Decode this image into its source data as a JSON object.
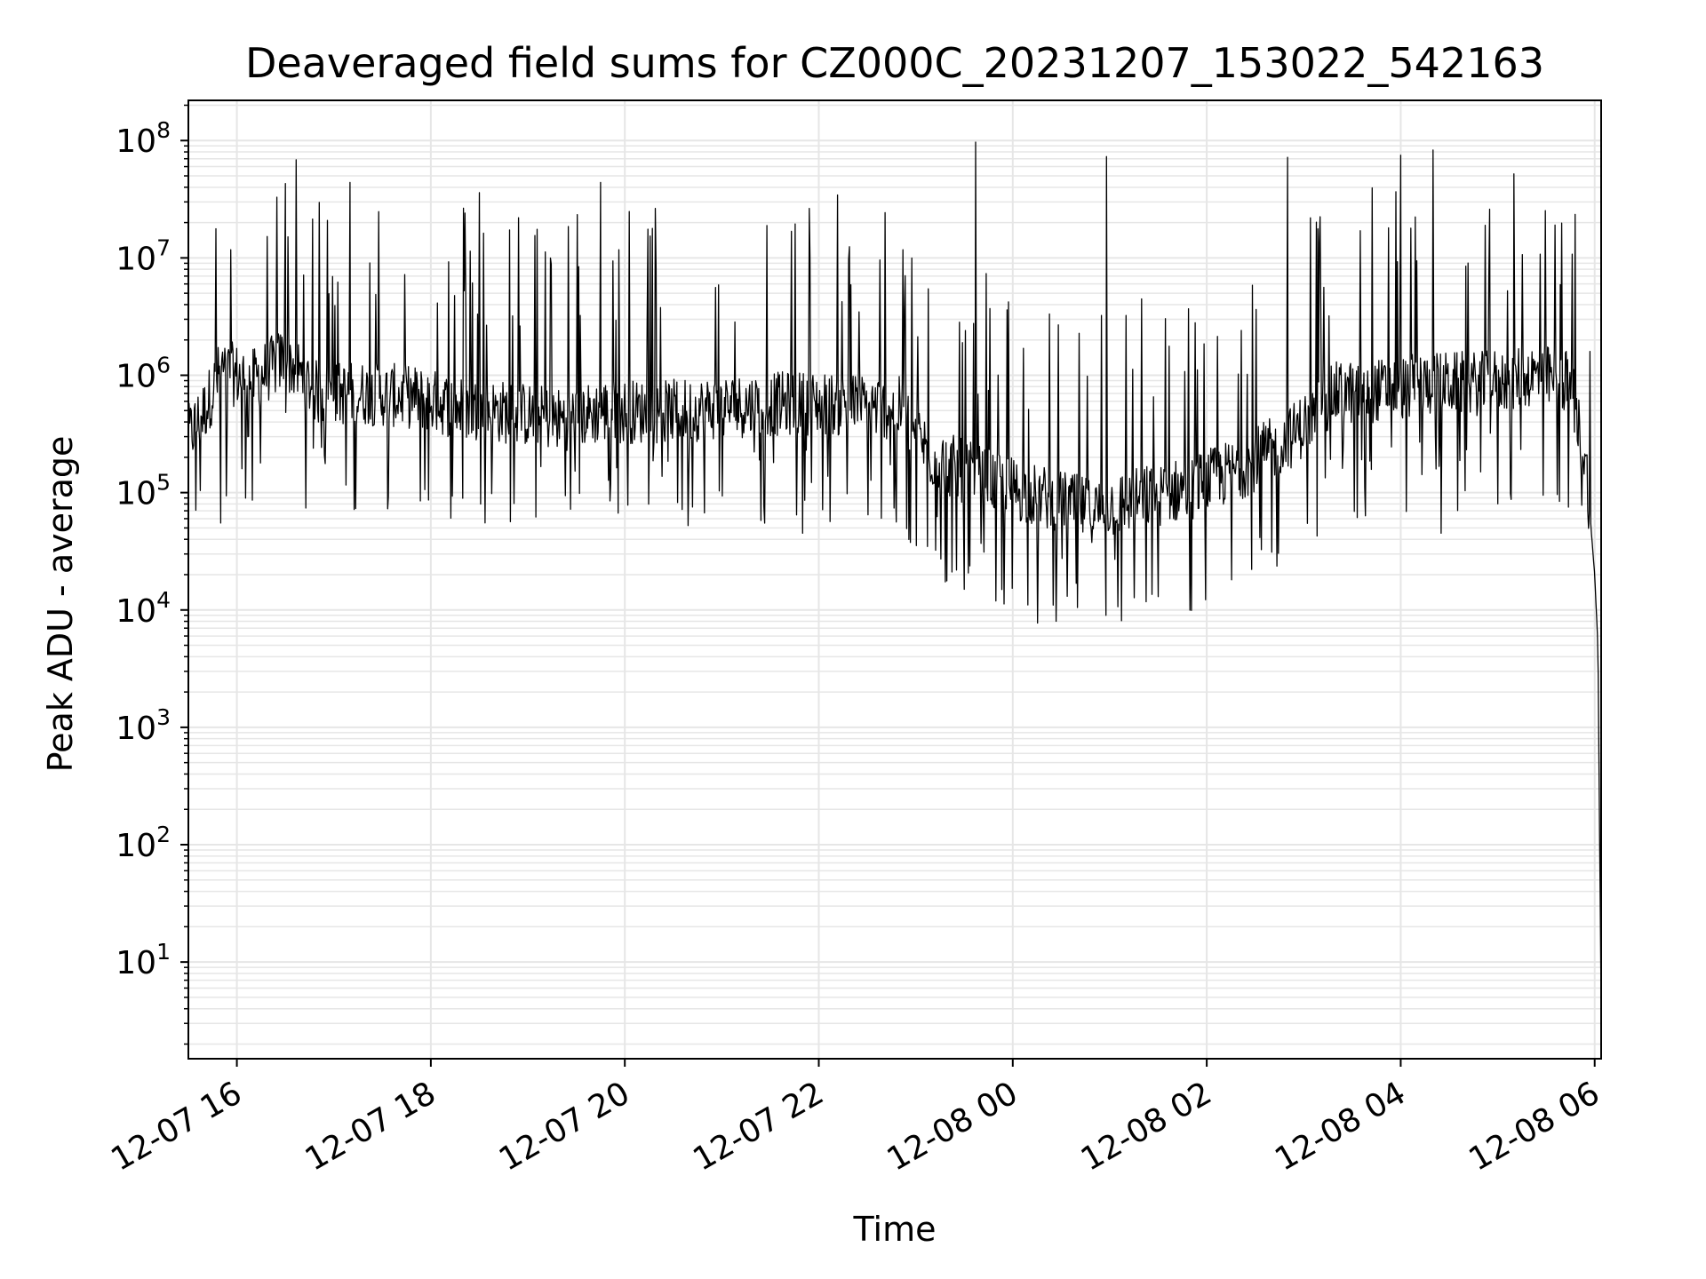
{
  "chart_data": {
    "type": "line",
    "title": "Deaveraged field sums for CZ000C_20231207_153022_542163",
    "xlabel": "Time",
    "ylabel": "Peak ADU - average",
    "x_axis": {
      "type": "datetime",
      "range": [
        "2023-12-07 15:30",
        "2023-12-08 06:04"
      ],
      "tick_values": [
        "2023-12-07 16:00",
        "2023-12-07 18:00",
        "2023-12-07 20:00",
        "2023-12-07 22:00",
        "2023-12-08 00:00",
        "2023-12-08 02:00",
        "2023-12-08 04:00",
        "2023-12-08 06:00"
      ],
      "tick_labels": [
        "12-07 16",
        "12-07 18",
        "12-07 20",
        "12-07 22",
        "12-08 00",
        "12-08 02",
        "12-08 04",
        "12-08 06"
      ]
    },
    "y_axis": {
      "scale": "log",
      "range": [
        1.5,
        220000000
      ],
      "tick_values": [
        10,
        100,
        1000,
        10000,
        100000,
        1000000,
        10000000,
        100000000
      ],
      "tick_labels": [
        {
          "base": "10",
          "exp": "1"
        },
        {
          "base": "10",
          "exp": "2"
        },
        {
          "base": "10",
          "exp": "3"
        },
        {
          "base": "10",
          "exp": "4"
        },
        {
          "base": "10",
          "exp": "5"
        },
        {
          "base": "10",
          "exp": "6"
        },
        {
          "base": "10",
          "exp": "7"
        },
        {
          "base": "10",
          "exp": "8"
        }
      ]
    },
    "grid": true,
    "line_color": "#000000",
    "grid_color": "#e6e6e6",
    "series": [
      {
        "points": [
          [
            "2023-12-07 15:30",
            300000
          ],
          [
            "2023-12-07 15:40",
            500000
          ],
          [
            "2023-12-07 15:50",
            1100000
          ],
          [
            "2023-12-07 16:10",
            900000
          ],
          [
            "2023-12-07 16:30",
            1400000
          ],
          [
            "2023-12-07 16:50",
            700000
          ],
          [
            "2023-12-07 17:20",
            700000
          ],
          [
            "2023-12-07 17:50",
            650000
          ],
          [
            "2023-12-07 18:20",
            520000
          ],
          [
            "2023-12-07 18:50",
            480000
          ],
          [
            "2023-12-07 19:20",
            420000
          ],
          [
            "2023-12-07 19:50",
            500000
          ],
          [
            "2023-12-07 20:20",
            480000
          ],
          [
            "2023-12-07 20:50",
            520000
          ],
          [
            "2023-12-07 21:20",
            560000
          ],
          [
            "2023-12-07 21:50",
            580000
          ],
          [
            "2023-12-07 22:20",
            560000
          ],
          [
            "2023-12-07 22:50",
            520000
          ],
          [
            "2023-12-07 23:10",
            200000
          ],
          [
            "2023-12-07 23:30",
            150000
          ],
          [
            "2023-12-07 23:50",
            120000
          ],
          [
            "2023-12-08 00:20",
            90000
          ],
          [
            "2023-12-08 00:50",
            70000
          ],
          [
            "2023-12-08 01:20",
            90000
          ],
          [
            "2023-12-08 01:50",
            110000
          ],
          [
            "2023-12-08 02:20",
            160000
          ],
          [
            "2023-12-08 02:50",
            280000
          ],
          [
            "2023-12-08 03:20",
            700000
          ],
          [
            "2023-12-08 03:50",
            750000
          ],
          [
            "2023-12-08 04:20",
            850000
          ],
          [
            "2023-12-08 04:50",
            850000
          ],
          [
            "2023-12-08 05:20",
            1000000
          ],
          [
            "2023-12-08 05:45",
            900000
          ],
          [
            "2023-12-08 05:55",
            150000
          ],
          [
            "2023-12-08 06:00",
            20000
          ],
          [
            "2023-12-08 06:02",
            5000
          ],
          [
            "2023-12-08 06:04",
            4
          ]
        ],
        "notable_peaks": [
          [
            "2023-12-07 16:30",
            43000000
          ],
          [
            "2023-12-07 17:10",
            44000000
          ],
          [
            "2023-12-07 18:30",
            36000000
          ],
          [
            "2023-12-07 19:45",
            44000000
          ],
          [
            "2023-12-07 23:37",
            97000000
          ],
          [
            "2023-12-08 00:58",
            73000000
          ],
          [
            "2023-12-08 02:50",
            72000000
          ],
          [
            "2023-12-08 04:00",
            75000000
          ],
          [
            "2023-12-08 04:20",
            83000000
          ],
          [
            "2023-12-08 05:10",
            52000000
          ]
        ],
        "notable_troughs": [
          [
            "2023-12-07 15:50",
            55000
          ],
          [
            "2023-12-07 19:05",
            62000
          ],
          [
            "2023-12-07 21:50",
            45000
          ],
          [
            "2023-12-07 23:30",
            15000
          ],
          [
            "2023-12-08 00:25",
            11000
          ],
          [
            "2023-12-08 00:40",
            10500
          ],
          [
            "2023-12-08 01:30",
            13000
          ],
          [
            "2023-12-08 04:25",
            45000
          ],
          [
            "2023-12-08 06:04",
            4
          ]
        ]
      }
    ]
  }
}
